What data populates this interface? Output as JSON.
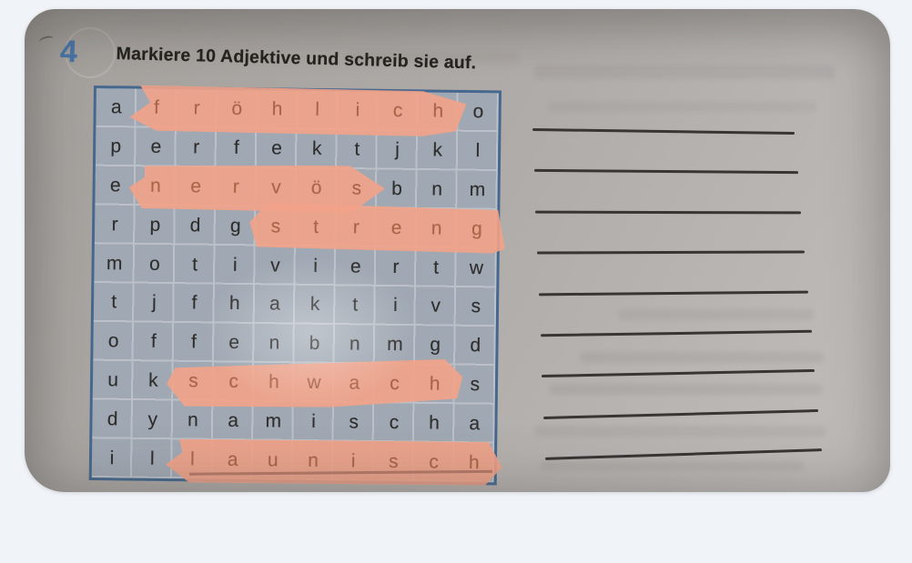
{
  "page": {
    "background_color": "#f0f3f8"
  },
  "photo": {
    "exercise_number": "4",
    "instruction": "Markiere 10 Adjektive und schreib sie auf.",
    "grid": {
      "rows": [
        [
          "a",
          "f",
          "r",
          "ö",
          "h",
          "l",
          "i",
          "c",
          "h",
          "o"
        ],
        [
          "p",
          "e",
          "r",
          "f",
          "e",
          "k",
          "t",
          "j",
          "k",
          "l"
        ],
        [
          "e",
          "n",
          "e",
          "r",
          "v",
          "ö",
          "s",
          "b",
          "n",
          "m"
        ],
        [
          "r",
          "p",
          "d",
          "g",
          "s",
          "t",
          "r",
          "e",
          "n",
          "g"
        ],
        [
          "m",
          "o",
          "t",
          "i",
          "v",
          "i",
          "e",
          "r",
          "t",
          "w"
        ],
        [
          "t",
          "j",
          "f",
          "h",
          "a",
          "k",
          "t",
          "i",
          "v",
          "s"
        ],
        [
          "o",
          "f",
          "f",
          "e",
          "n",
          "b",
          "n",
          "m",
          "g",
          "d"
        ],
        [
          "u",
          "k",
          "s",
          "c",
          "h",
          "w",
          "a",
          "c",
          "h",
          "s"
        ],
        [
          "d",
          "y",
          "n",
          "a",
          "m",
          "i",
          "s",
          "c",
          "h",
          "a"
        ],
        [
          "i",
          "l",
          "l",
          "a",
          "u",
          "n",
          "i",
          "s",
          "c",
          "h"
        ]
      ],
      "highlights": [
        {
          "row": 1,
          "from": 2,
          "to": 9,
          "word": "fröhlich"
        },
        {
          "row": 3,
          "from": 2,
          "to": 7,
          "word": "nervös"
        },
        {
          "row": 4,
          "from": 5,
          "to": 10,
          "word": "streng"
        },
        {
          "row": 8,
          "from": 3,
          "to": 9,
          "word": "schwach"
        },
        {
          "row": 10,
          "from": 3,
          "to": 10,
          "word": "launisch"
        }
      ]
    },
    "answer_lines_count": 9,
    "colors": {
      "highlight": "#f2a287",
      "grid_border": "#47688e",
      "grid_cell": "#a0a8b3",
      "grid_line": "#bcc1c9",
      "letter": "#2f2e2c",
      "letter_highlighted": "#a96449",
      "exercise_number_color": "#4a76a9",
      "answer_line_color": "#383633"
    }
  }
}
